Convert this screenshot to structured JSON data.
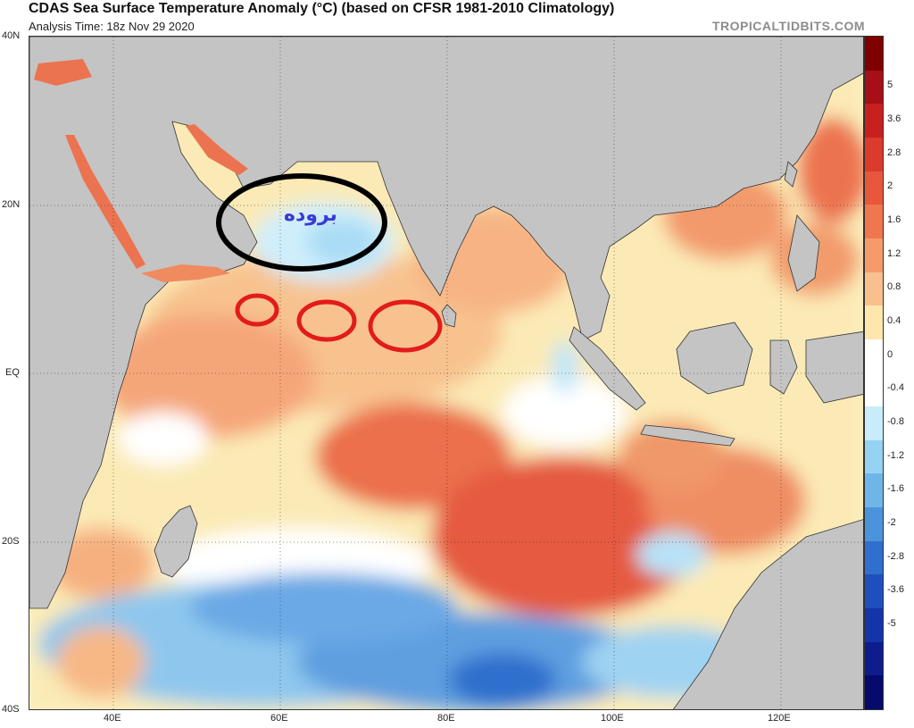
{
  "header": {
    "title": "CDAS Sea Surface Temperature Anomaly (°C) (based on CFSR 1981-2010 Climatology)",
    "subtitle": "Analysis Time: 18z Nov 29 2020",
    "credit": "TROPICALTIDBITS.COM"
  },
  "axes": {
    "lat_labels": [
      "40N",
      "20N",
      "EQ",
      "20S",
      "40S"
    ],
    "lon_labels": [
      "40E",
      "60E",
      "80E",
      "100E",
      "120E"
    ]
  },
  "colorbar": {
    "labels": [
      "5",
      "3.6",
      "2.8",
      "2",
      "1.6",
      "1.2",
      "0.8",
      "0.4",
      "0",
      "-0.4",
      "-0.8",
      "-1.2",
      "-1.6",
      "-2",
      "-2.8",
      "-3.6",
      "-5"
    ],
    "colors": [
      "#7f0000",
      "#a50f15",
      "#c8201f",
      "#dc3a2c",
      "#e8563b",
      "#f0764e",
      "#f59b6a",
      "#f9c08e",
      "#fde7ad",
      "#ffffff",
      "#ffffff",
      "#c9ecfb",
      "#96d2f1",
      "#6fb6e8",
      "#4b93db",
      "#2f6fcd",
      "#1f4fbf",
      "#1634a9",
      "#0d1d8c",
      "#060a6b"
    ]
  },
  "annotations": {
    "cold_label": "بروده",
    "outline_colors": {
      "black": "#000000",
      "red": "#e31b1b"
    }
  },
  "colors": {
    "land": "#c4c4c4",
    "ocean_base": "#fbf3c6"
  }
}
